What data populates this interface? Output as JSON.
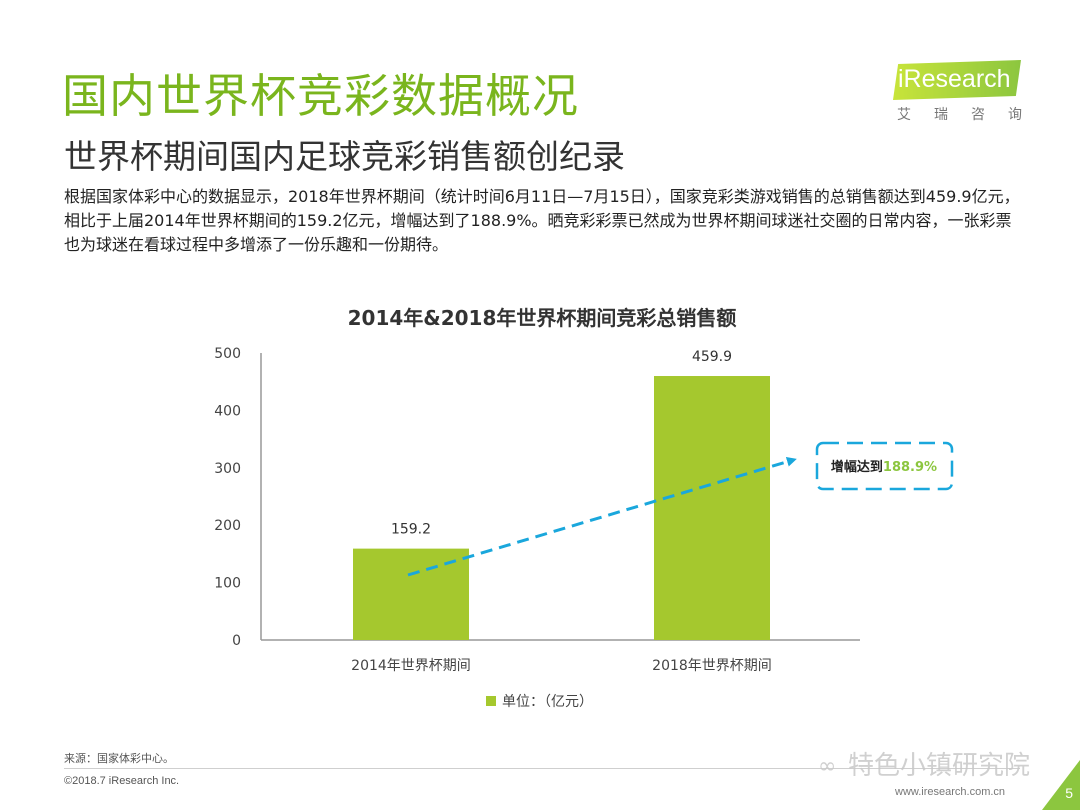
{
  "slide": {
    "title": "国内世界杯竞彩数据概况",
    "subtitle": "世界杯期间国内足球竞彩销售额创纪录",
    "body": "根据国家体彩中心的数据显示，2018年世界杯期间（统计时间6月11日—7月15日），国家竞彩类游戏销售的总销售额达到459.9亿元，相比于上届2014年世界杯期间的159.2亿元，增幅达到了188.9%。晒竞彩彩票已然成为世界杯期间球迷社交圈的日常内容，一张彩票也为球迷在看球过程中多增添了一份乐趣和一份期待。",
    "source_note": "来源：国家体彩中心。",
    "copyright": "©2018.7 iResearch Inc.",
    "website": "www.iresearch.com.cn",
    "page_number": "5",
    "watermark": "特色小镇研究院"
  },
  "logo": {
    "name": "iResearch",
    "cn": "艾瑞咨询"
  },
  "chart_data": {
    "type": "bar",
    "title": "2014年&2018年世界杯期间竞彩总销售额",
    "categories": [
      "2014年世界杯期间",
      "2018年世界杯期间"
    ],
    "series": [
      {
        "name": "单位：（亿元）",
        "values": [
          159.2,
          459.9
        ]
      }
    ],
    "value_labels": [
      "159.2",
      "459.9"
    ],
    "ylim": [
      0,
      500
    ],
    "yticks": [
      "0",
      "100",
      "200",
      "300",
      "400",
      "500"
    ],
    "annotation": {
      "prefix": "增幅达到",
      "value": "188.9%"
    },
    "colors": {
      "bar": "#a5c82e",
      "arrow": "#1aa7dc",
      "highlight": "#8cc63f"
    },
    "legend_position": "bottom",
    "grid": false
  }
}
